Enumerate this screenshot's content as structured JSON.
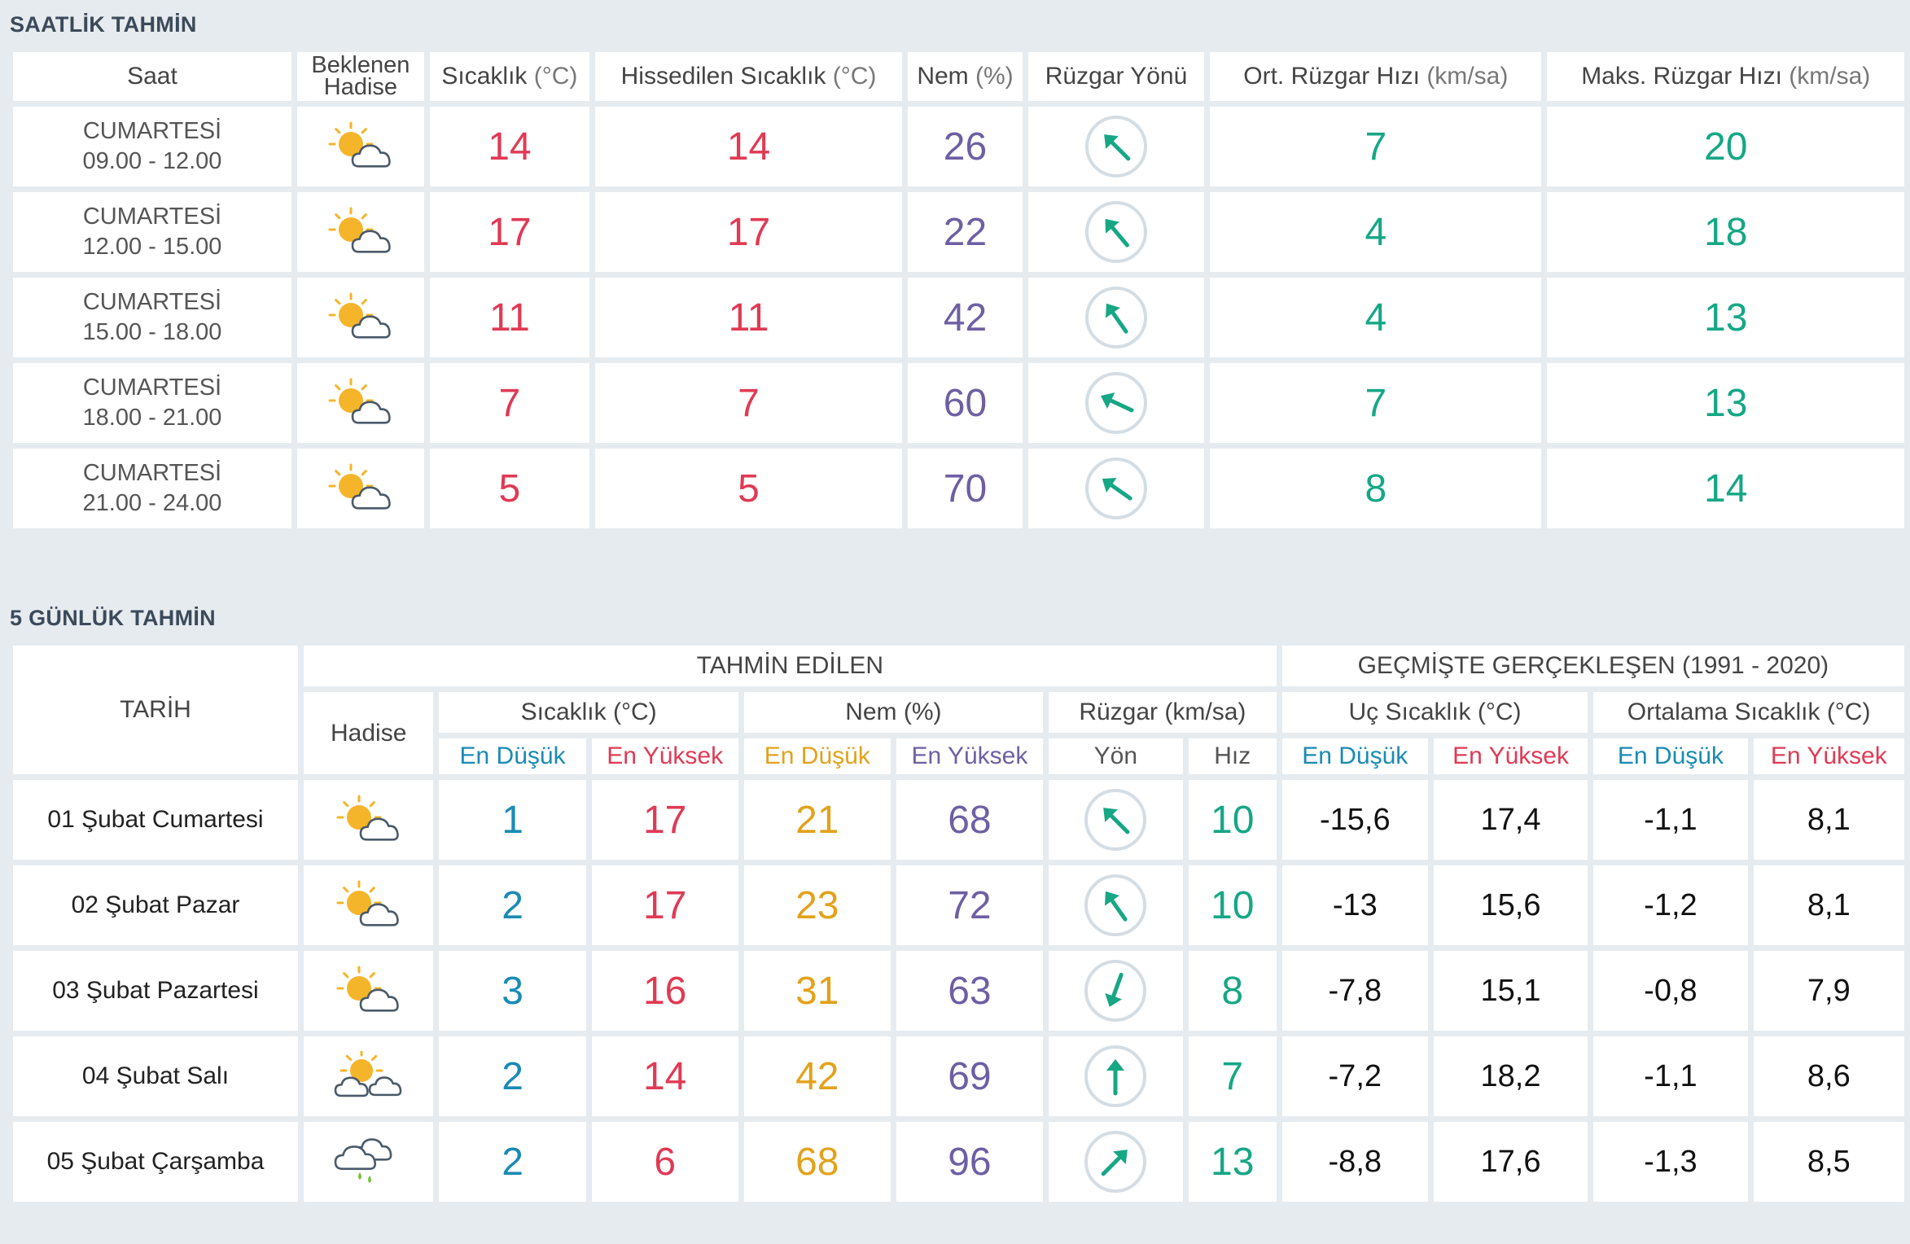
{
  "colors": {
    "red": "#e03a54",
    "purple": "#6e5fa3",
    "teal": "#16a785",
    "blue": "#1a8bb5",
    "orange": "#e2a21b",
    "sun": "#f5b52a",
    "cloud_stroke": "#4a5a6a",
    "rain": "#7bc043"
  },
  "hourly": {
    "title": "SAATLİK TAHMİN",
    "headers": {
      "time": "Saat",
      "event": "Beklenen Hadise",
      "temp": "Sıcaklık",
      "temp_unit": "(°C)",
      "feels": "Hissedilen Sıcaklık",
      "feels_unit": "(°C)",
      "humidity": "Nem",
      "humidity_unit": "(%)",
      "wind_dir": "Rüzgar Yönü",
      "avg_wind": "Ort. Rüzgar Hızı",
      "avg_wind_unit": "(km/sa)",
      "max_wind": "Maks. Rüzgar Hızı",
      "max_wind_unit": "(km/sa)"
    },
    "rows": [
      {
        "day": "CUMARTESİ",
        "time": "09.00 - 12.00",
        "icon": "partly-cloudy-icon",
        "temp": "14",
        "feels": "14",
        "humidity": "26",
        "wind_dir_deg": 135,
        "avg": "7",
        "max": "20"
      },
      {
        "day": "CUMARTESİ",
        "time": "12.00 - 15.00",
        "icon": "partly-cloudy-icon",
        "temp": "17",
        "feels": "17",
        "humidity": "22",
        "wind_dir_deg": 140,
        "avg": "4",
        "max": "18"
      },
      {
        "day": "CUMARTESİ",
        "time": "15.00 - 18.00",
        "icon": "partly-cloudy-icon",
        "temp": "11",
        "feels": "11",
        "humidity": "42",
        "wind_dir_deg": 145,
        "avg": "4",
        "max": "13"
      },
      {
        "day": "CUMARTESİ",
        "time": "18.00 - 21.00",
        "icon": "partly-cloudy-icon",
        "temp": "7",
        "feels": "7",
        "humidity": "60",
        "wind_dir_deg": 115,
        "avg": "7",
        "max": "13"
      },
      {
        "day": "CUMARTESİ",
        "time": "21.00 - 24.00",
        "icon": "partly-cloudy-icon",
        "temp": "5",
        "feels": "5",
        "humidity": "70",
        "wind_dir_deg": 125,
        "avg": "8",
        "max": "14"
      }
    ]
  },
  "daily": {
    "title": "5 GÜNLÜK TAHMİN",
    "headers": {
      "date": "TARİH",
      "predicted": "TAHMİN EDİLEN",
      "past": "GEÇMİŞTE GERÇEKLEŞEN (1991 - 2020)",
      "event": "Hadise",
      "temp": "Sıcaklık (°C)",
      "humidity": "Nem (%)",
      "wind": "Rüzgar (km/sa)",
      "extreme": "Uç Sıcaklık (°C)",
      "average": "Ortalama Sıcaklık (°C)",
      "min": "En Düşük",
      "max": "En Yüksek",
      "dir": "Yön",
      "speed": "Hız"
    },
    "rows": [
      {
        "date": "01 Şubat Cumartesi",
        "icon": "partly-cloudy-icon",
        "tmin": "1",
        "tmax": "17",
        "hmin": "21",
        "hmax": "68",
        "wind_dir_deg": 135,
        "speed": "10",
        "ext_min": "-15,6",
        "ext_max": "17,4",
        "avg_min": "-1,1",
        "avg_max": "8,1"
      },
      {
        "date": "02 Şubat Pazar",
        "icon": "partly-cloudy-icon",
        "tmin": "2",
        "tmax": "17",
        "hmin": "23",
        "hmax": "72",
        "wind_dir_deg": 145,
        "speed": "10",
        "ext_min": "-13",
        "ext_max": "15,6",
        "avg_min": "-1,2",
        "avg_max": "8,1"
      },
      {
        "date": "03 Şubat Pazartesi",
        "icon": "partly-cloudy-icon",
        "tmin": "3",
        "tmax": "16",
        "hmin": "31",
        "hmax": "63",
        "wind_dir_deg": 20,
        "speed": "8",
        "ext_min": "-7,8",
        "ext_max": "15,1",
        "avg_min": "-0,8",
        "avg_max": "7,9"
      },
      {
        "date": "04 Şubat Salı",
        "icon": "sun-two-clouds-icon",
        "tmin": "2",
        "tmax": "14",
        "hmin": "42",
        "hmax": "69",
        "wind_dir_deg": 180,
        "speed": "7",
        "ext_min": "-7,2",
        "ext_max": "18,2",
        "avg_min": "-1,1",
        "avg_max": "8,6"
      },
      {
        "date": "05 Şubat Çarşamba",
        "icon": "rain-cloud-icon",
        "tmin": "2",
        "tmax": "6",
        "hmin": "68",
        "hmax": "96",
        "wind_dir_deg": 225,
        "speed": "13",
        "ext_min": "-8,8",
        "ext_max": "17,6",
        "avg_min": "-1,3",
        "avg_max": "8,5"
      }
    ]
  }
}
